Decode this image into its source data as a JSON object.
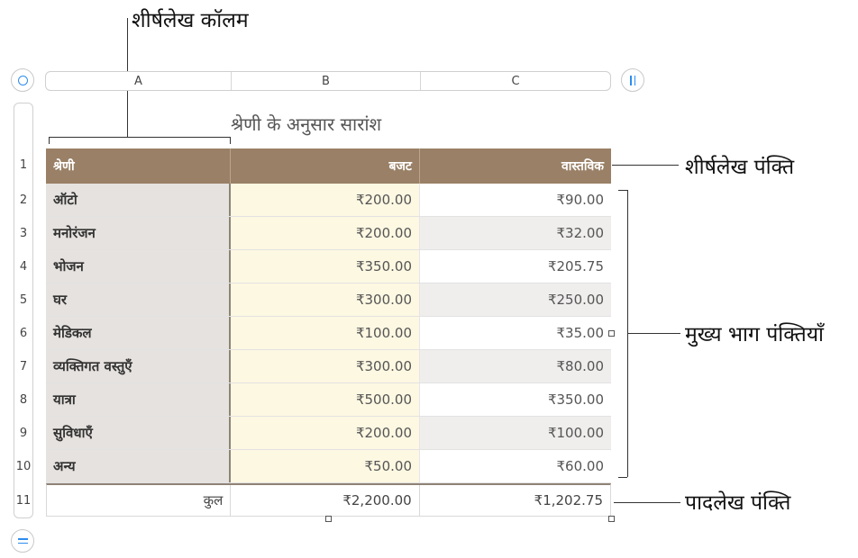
{
  "callouts": {
    "header_column": "शीर्षलेख कॉलम",
    "header_row": "शीर्षलेख पंक्ति",
    "body_rows": "मुख्य भाग पंक्तियाँ",
    "footer_row": "पादलेख पंक्ति"
  },
  "column_headers": [
    "A",
    "B",
    "C"
  ],
  "row_numbers": [
    "1",
    "2",
    "3",
    "4",
    "5",
    "6",
    "7",
    "8",
    "9",
    "10",
    "11"
  ],
  "table": {
    "title": "श्रेणी के अनुसार सारांश",
    "header": [
      "श्रेणी",
      "बजट",
      "वास्तविक"
    ],
    "rows": [
      {
        "category": "ऑटो",
        "budget": "₹200.00",
        "actual": "₹90.00"
      },
      {
        "category": "मनोरंजन",
        "budget": "₹200.00",
        "actual": "₹32.00"
      },
      {
        "category": "भोजन",
        "budget": "₹350.00",
        "actual": "₹205.75"
      },
      {
        "category": "घर",
        "budget": "₹300.00",
        "actual": "₹250.00"
      },
      {
        "category": "मेडिकल",
        "budget": "₹100.00",
        "actual": "₹35.00"
      },
      {
        "category": "व्यक्तिगत वस्तुएँ",
        "budget": "₹300.00",
        "actual": "₹80.00"
      },
      {
        "category": "यात्रा",
        "budget": "₹500.00",
        "actual": "₹350.00"
      },
      {
        "category": "सुविधाएँ",
        "budget": "₹200.00",
        "actual": "₹100.00"
      },
      {
        "category": "अन्य",
        "budget": "₹50.00",
        "actual": "₹60.00"
      }
    ],
    "footer": {
      "label": "कुल",
      "budget": "₹2,200.00",
      "actual": "₹1,202.75"
    }
  },
  "colors": {
    "header_fill": "#998066",
    "category_column_fill": "#e6e2df",
    "budget_column_fill": "#fdf8e2",
    "accent_blue": "#2d8cf0"
  },
  "icons": [
    "select-table-circle-icon",
    "column-pause-icon",
    "row-equal-icon"
  ]
}
